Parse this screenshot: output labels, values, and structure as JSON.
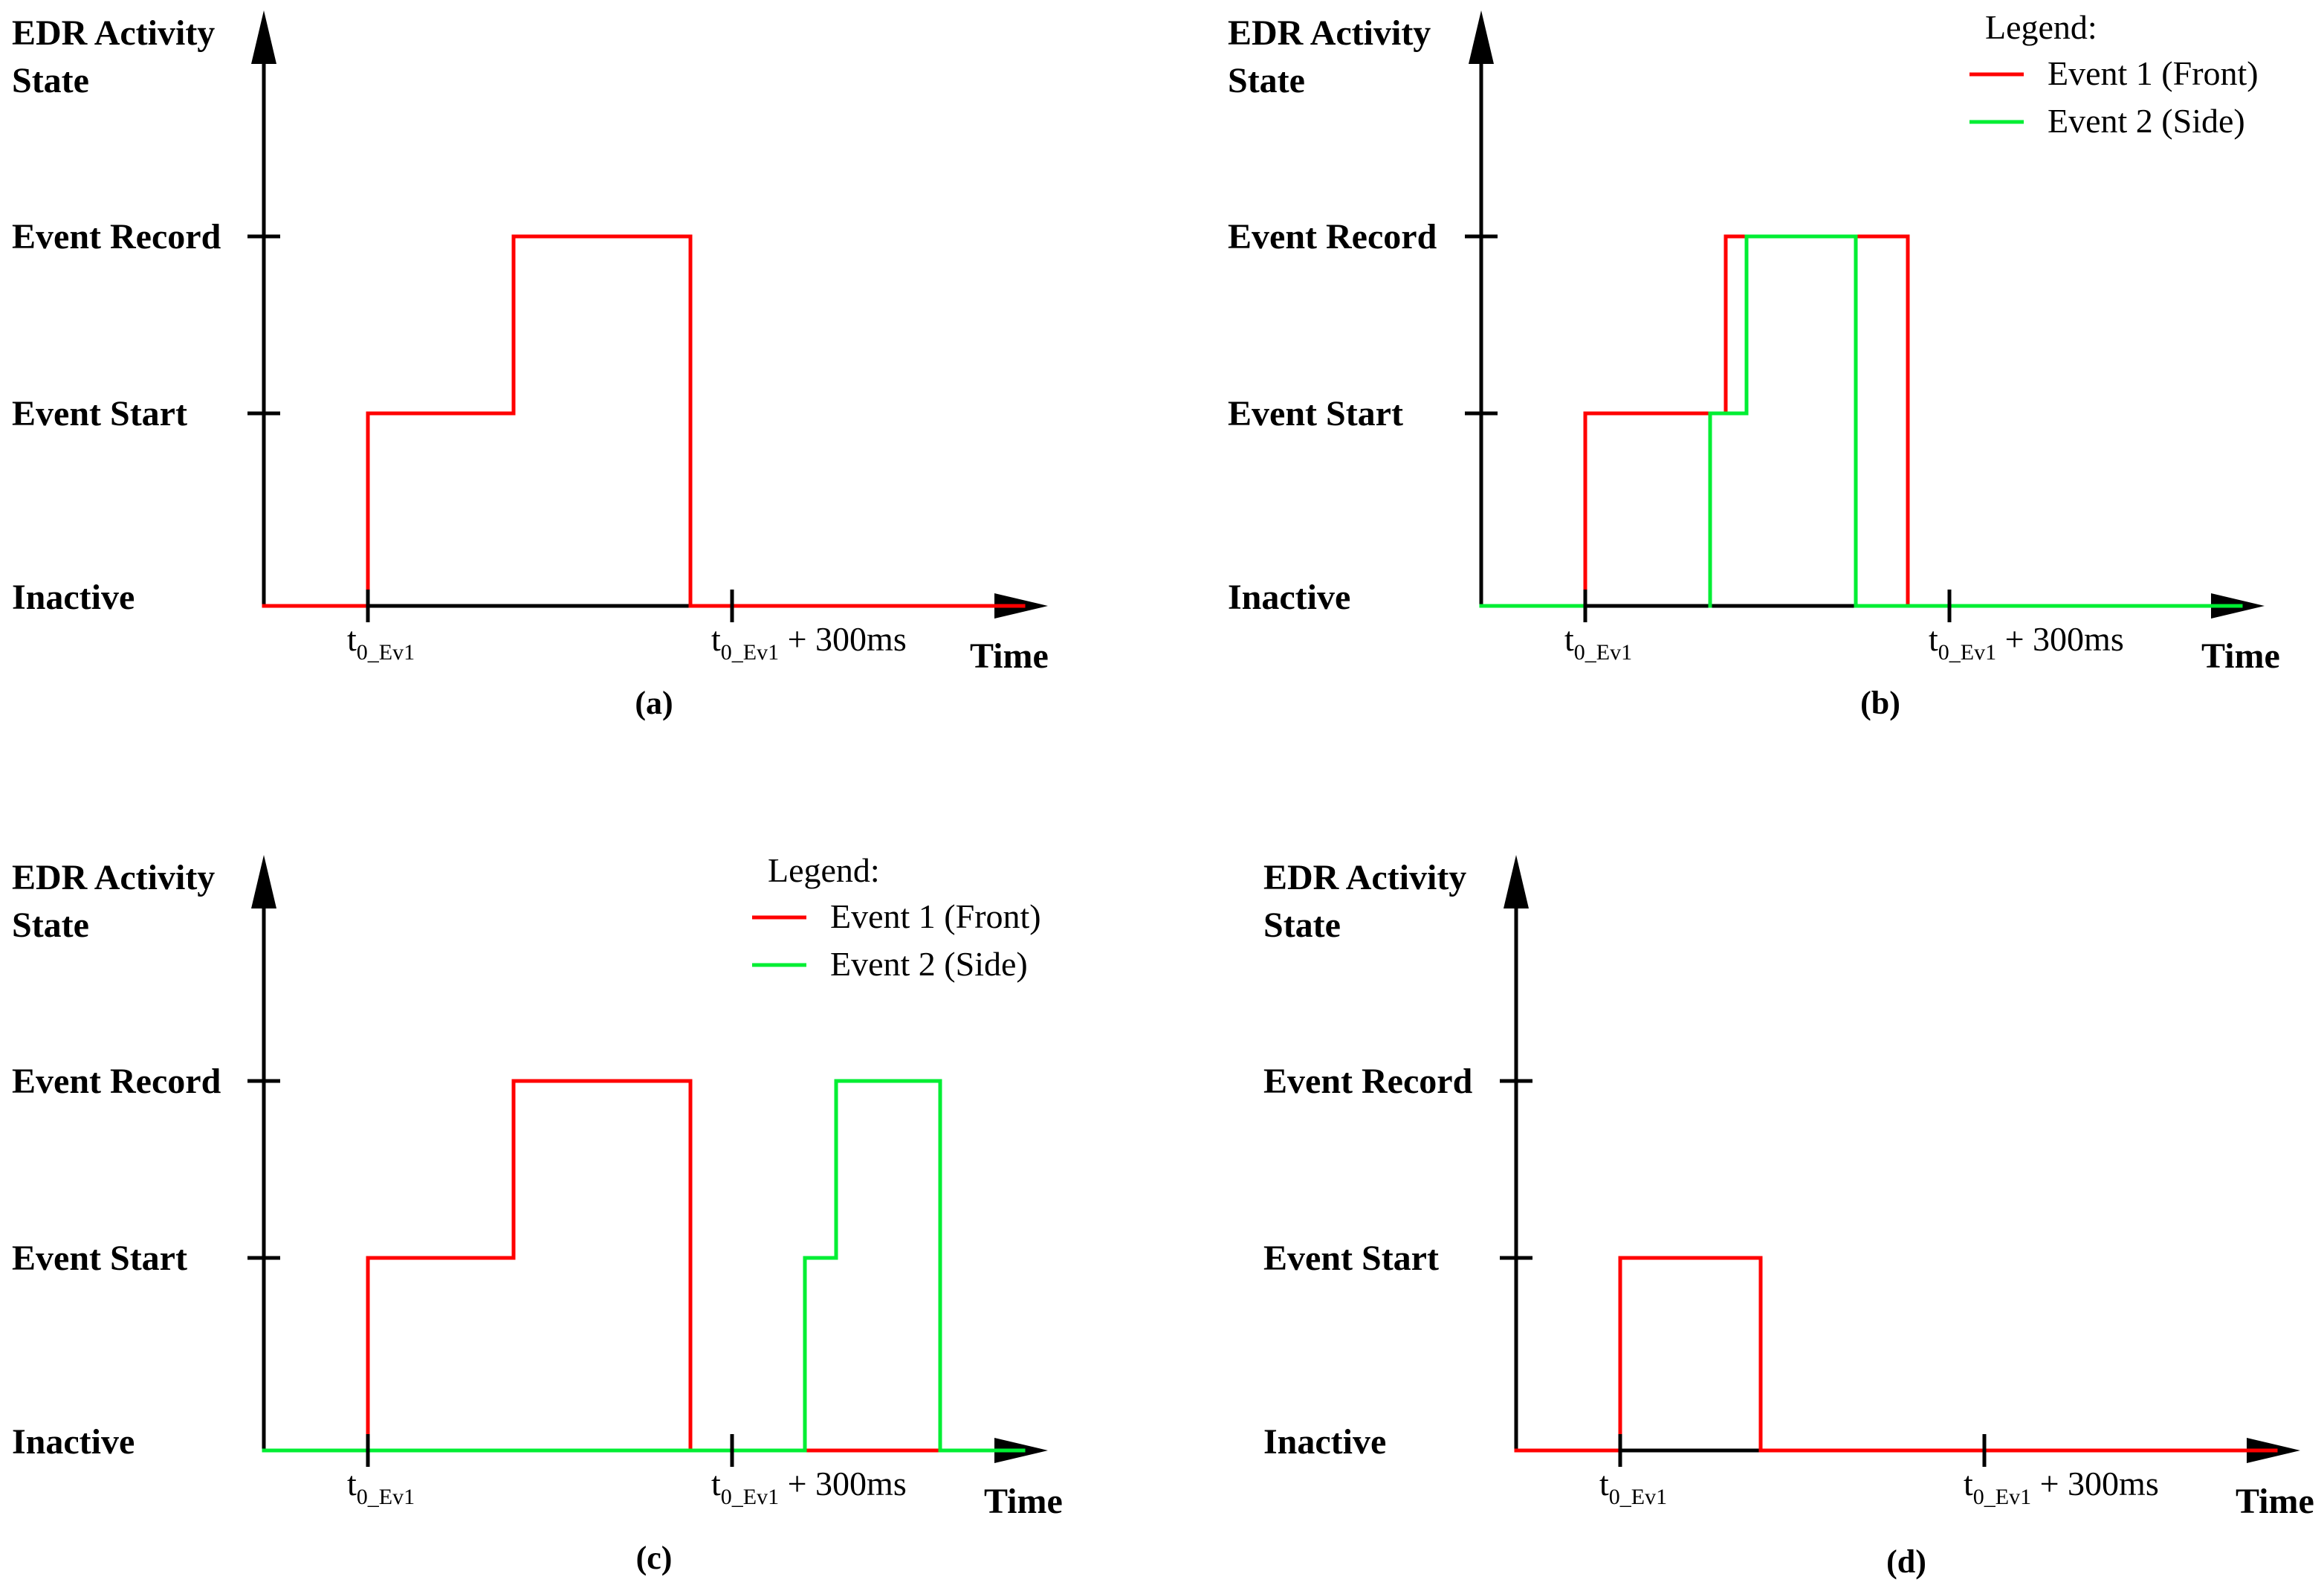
{
  "chart_data": [
    {
      "type": "line",
      "panel_label": "(a)",
      "y_title_line1": "EDR Activity",
      "y_title_line2": "State",
      "y_categories": [
        "Inactive",
        "Event Start",
        "Event Record"
      ],
      "x_label": "Time",
      "x_ticks": [
        {
          "x": 1,
          "main": "t",
          "sub": "0_Ev1",
          "suffix": ""
        },
        {
          "x": 4.5,
          "main": "t",
          "sub": "0_Ev1",
          "suffix": " + 300ms"
        }
      ],
      "xlim": [
        0,
        7.5
      ],
      "legend": null,
      "series": [
        {
          "name": "Event 1 (Front)",
          "color": "#ff0000",
          "steps": [
            [
              0,
              0
            ],
            [
              1,
              0
            ],
            [
              1,
              1
            ],
            [
              2.4,
              1
            ],
            [
              2.4,
              2
            ],
            [
              4.1,
              2
            ],
            [
              4.1,
              0
            ],
            [
              7.3,
              0
            ]
          ],
          "segments_hidden": [
            [
              1,
              4.1
            ]
          ]
        }
      ]
    },
    {
      "type": "line",
      "panel_label": "(b)",
      "y_title_line1": "EDR Activity",
      "y_title_line2": "State",
      "y_categories": [
        "Inactive",
        "Event Start",
        "Event Record"
      ],
      "x_label": "Time",
      "x_ticks": [
        {
          "x": 1,
          "main": "t",
          "sub": "0_Ev1",
          "suffix": ""
        },
        {
          "x": 4.5,
          "main": "t",
          "sub": "0_Ev1",
          "suffix": " + 300ms"
        }
      ],
      "xlim": [
        0,
        7.5
      ],
      "legend": {
        "title": "Legend:",
        "entries": [
          {
            "label": "Event 1 (Front)",
            "color": "#ff0000"
          },
          {
            "label": "Event 2 (Side)",
            "color": "#00ee33"
          }
        ]
      },
      "series": [
        {
          "name": "Event 1 (Front)",
          "color": "#ff0000",
          "steps": [
            [
              1,
              0
            ],
            [
              1,
              1
            ],
            [
              2.35,
              1
            ],
            [
              2.35,
              2
            ],
            [
              4.1,
              2
            ],
            [
              4.1,
              0
            ],
            [
              4.5,
              0
            ]
          ],
          "segments_hidden": []
        },
        {
          "name": "Event 2 (Side)",
          "color": "#00ee33",
          "steps": [
            [
              0,
              0
            ],
            [
              1,
              0
            ],
            [
              2.2,
              0
            ],
            [
              2.2,
              1
            ],
            [
              2.55,
              1
            ],
            [
              2.55,
              2
            ],
            [
              3.6,
              2
            ],
            [
              3.6,
              0
            ],
            [
              7.3,
              0
            ]
          ],
          "segments_hidden": [
            [
              1,
              3.6
            ]
          ]
        }
      ]
    },
    {
      "type": "line",
      "panel_label": "(c)",
      "y_title_line1": "EDR Activity",
      "y_title_line2": "State",
      "y_categories": [
        "Inactive",
        "Event Start",
        "Event Record"
      ],
      "x_label": "Time",
      "x_ticks": [
        {
          "x": 1,
          "main": "t",
          "sub": "0_Ev1",
          "suffix": ""
        },
        {
          "x": 4.5,
          "main": "t",
          "sub": "0_Ev1",
          "suffix": " + 300ms"
        }
      ],
      "xlim": [
        0,
        7.5
      ],
      "legend": {
        "title": "Legend:",
        "entries": [
          {
            "label": "Event 1 (Front)",
            "color": "#ff0000"
          },
          {
            "label": "Event 2 (Side)",
            "color": "#00ee33"
          }
        ]
      },
      "series": [
        {
          "name": "Event 1 (Front)",
          "color": "#ff0000",
          "steps": [
            [
              1,
              0
            ],
            [
              1,
              1
            ],
            [
              2.4,
              1
            ],
            [
              2.4,
              2
            ],
            [
              4.1,
              2
            ],
            [
              4.1,
              0
            ],
            [
              4.5,
              0
            ],
            [
              5.2,
              0
            ],
            [
              6.5,
              0
            ]
          ],
          "segments_hidden": []
        },
        {
          "name": "Event 2 (Side)",
          "color": "#00ee33",
          "steps": [
            [
              0,
              0
            ],
            [
              5.2,
              0
            ],
            [
              5.2,
              1
            ],
            [
              5.5,
              1
            ],
            [
              5.5,
              2
            ],
            [
              6.5,
              2
            ],
            [
              6.5,
              0
            ],
            [
              7.3,
              0
            ]
          ],
          "segments_hidden": [
            [
              1,
              5.2
            ]
          ]
        }
      ]
    },
    {
      "type": "line",
      "panel_label": "(d)",
      "y_title_line1": "EDR Activity",
      "y_title_line2": "State",
      "y_categories": [
        "Inactive",
        "Event Start",
        "Event Record"
      ],
      "x_label": "Time",
      "x_ticks": [
        {
          "x": 1,
          "main": "t",
          "sub": "0_Ev1",
          "suffix": ""
        },
        {
          "x": 4.5,
          "main": "t",
          "sub": "0_Ev1",
          "suffix": " + 300ms"
        }
      ],
      "xlim": [
        0,
        7.5
      ],
      "legend": null,
      "series": [
        {
          "name": "Event 1 (Front)",
          "color": "#ff0000",
          "steps": [
            [
              0,
              0
            ],
            [
              1,
              0
            ],
            [
              1,
              1
            ],
            [
              2.35,
              1
            ],
            [
              2.35,
              0
            ],
            [
              7.3,
              0
            ]
          ],
          "segments_hidden": [
            [
              1,
              2.35
            ]
          ]
        }
      ]
    }
  ]
}
